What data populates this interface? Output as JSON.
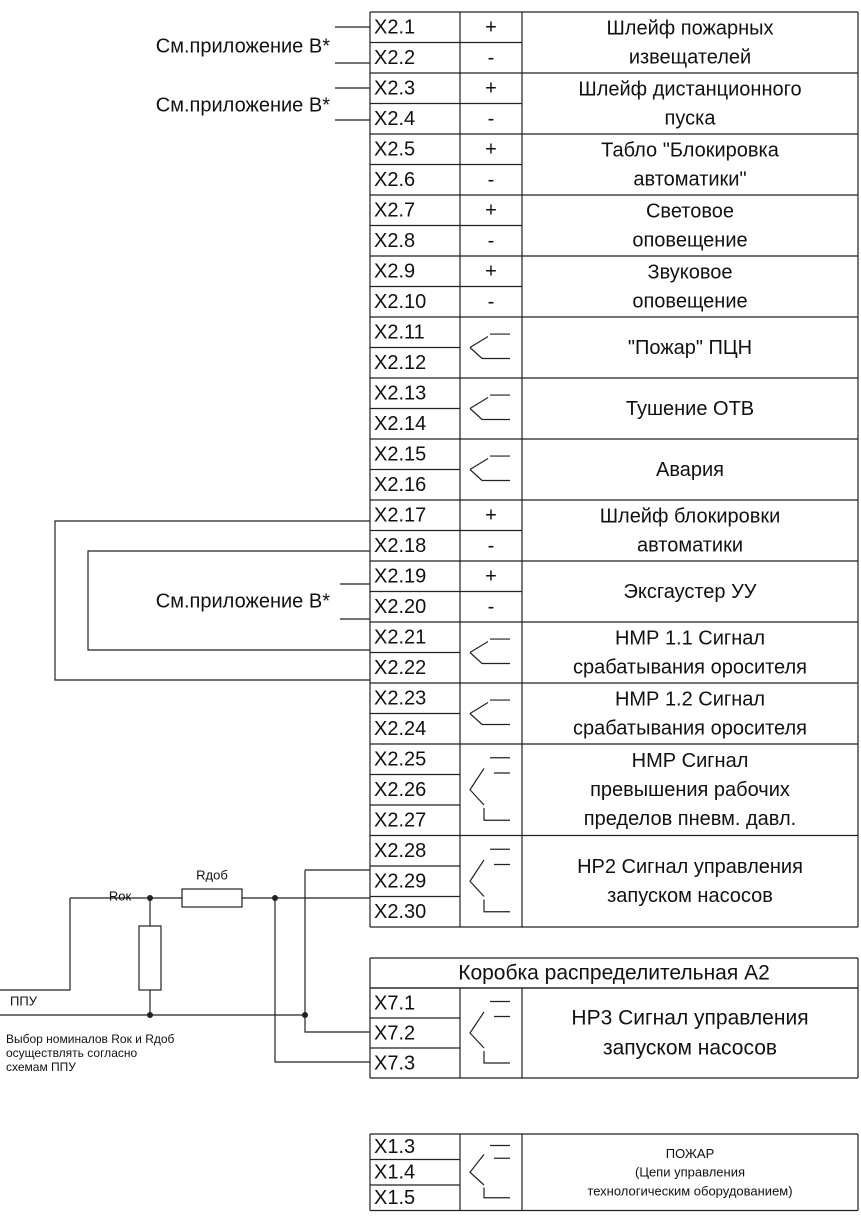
{
  "references": [
    "См.приложение В*",
    "См.приложение В*",
    "См.приложение В*"
  ],
  "circuit": {
    "r_add": "Rдоб",
    "r_ok": "Rок",
    "ppu": "ППУ",
    "note": [
      "Выбор номиналов Rок и Rдоб",
      "осуществлять согласно",
      "схемам ППУ"
    ]
  },
  "block_x2": {
    "groups": [
      {
        "terminals": [
          "X2.1",
          "X2.2"
        ],
        "signs": [
          "+",
          "-"
        ],
        "lines": [
          "Шлейф пожарных",
          "извещателей"
        ]
      },
      {
        "terminals": [
          "X2.3",
          "X2.4"
        ],
        "signs": [
          "+",
          "-"
        ],
        "lines": [
          "Шлейф дистанционного",
          "пуска"
        ]
      },
      {
        "terminals": [
          "X2.5",
          "X2.6"
        ],
        "signs": [
          "+",
          "-"
        ],
        "lines": [
          "Табло \"Блокировка",
          "автоматики\""
        ]
      },
      {
        "terminals": [
          "X2.7",
          "X2.8"
        ],
        "signs": [
          "+",
          "-"
        ],
        "lines": [
          "Световое",
          "оповещение"
        ]
      },
      {
        "terminals": [
          "X2.9",
          "X2.10"
        ],
        "signs": [
          "+",
          "-"
        ],
        "lines": [
          "Звуковое",
          "оповещение"
        ]
      },
      {
        "terminals": [
          "X2.11",
          "X2.12"
        ],
        "lines": [
          "\"Пожар\" ПЦН"
        ]
      },
      {
        "terminals": [
          "X2.13",
          "X2.14"
        ],
        "lines": [
          "Тушение ОТВ"
        ]
      },
      {
        "terminals": [
          "X2.15",
          "X2.16"
        ],
        "lines": [
          "Авария"
        ]
      },
      {
        "terminals": [
          "X2.17",
          "X2.18"
        ],
        "signs": [
          "+",
          "-"
        ],
        "lines": [
          "Шлейф блокировки",
          "автоматики"
        ]
      },
      {
        "terminals": [
          "X2.19",
          "X2.20"
        ],
        "signs": [
          "+",
          "-"
        ],
        "lines": [
          "Эксгаустер УУ"
        ]
      },
      {
        "terminals": [
          "X2.21",
          "X2.22"
        ],
        "lines": [
          "НМР 1.1 Сигнал",
          "срабатывания оросителя"
        ]
      },
      {
        "terminals": [
          "X2.23",
          "X2.24"
        ],
        "lines": [
          "НМР 1.2 Сигнал",
          "срабатывания оросителя"
        ]
      },
      {
        "terminals": [
          "X2.25",
          "X2.26",
          "X2.27"
        ],
        "lines": [
          "НМР Сигнал",
          "превышения рабочих",
          "пределов пневм. давл."
        ]
      },
      {
        "terminals": [
          "X2.28",
          "X2.29",
          "X2.30"
        ],
        "lines": [
          "НР2 Сигнал управления",
          "запуском насосов"
        ]
      }
    ]
  },
  "block_a2": {
    "header": "Коробка распределительная А2",
    "groups": [
      {
        "terminals": [
          "X7.1",
          "X7.2",
          "X7.3"
        ],
        "lines": [
          "НР3 Сигнал управления",
          "запуском насосов"
        ]
      }
    ]
  },
  "block_x1": {
    "groups": [
      {
        "terminals": [
          "X1.3",
          "X1.4",
          "X1.5"
        ],
        "lines": [
          "ПОЖАР",
          "(Цепи управления",
          "технологическим оборудованием)"
        ]
      }
    ]
  }
}
